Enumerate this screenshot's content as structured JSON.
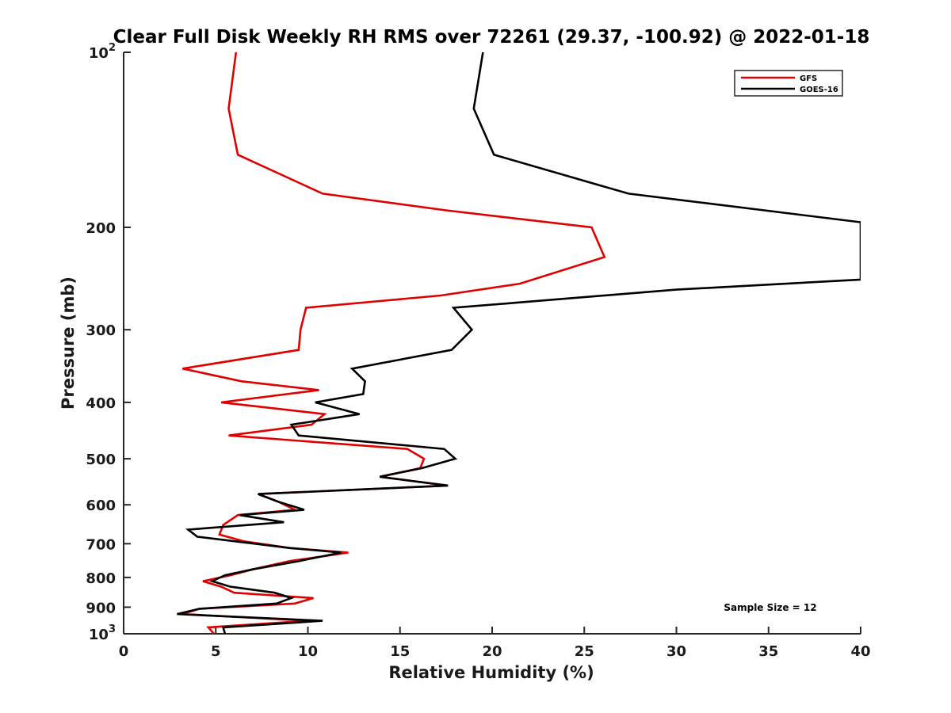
{
  "chart_data": {
    "type": "line",
    "title": "Clear Full Disk Weekly RH RMS over 72261 (29.37, -100.92) @ 2022-01-18",
    "xlabel": "Relative Humidity (%)",
    "ylabel": "Pressure (mb)",
    "xlim": [
      0,
      40
    ],
    "ylim": [
      100,
      1000
    ],
    "y_scale": "log",
    "y_reversed": true,
    "grid": false,
    "legend_position": "top-right",
    "x_ticks": [
      0,
      5,
      10,
      15,
      20,
      25,
      30,
      35,
      40
    ],
    "y_ticks": [
      {
        "value": 100,
        "base": "10",
        "exp": "2",
        "label": ""
      },
      {
        "value": 200,
        "label": "200"
      },
      {
        "value": 300,
        "label": "300"
      },
      {
        "value": 400,
        "label": "400"
      },
      {
        "value": 500,
        "label": "500"
      },
      {
        "value": 600,
        "label": "600"
      },
      {
        "value": 700,
        "label": "700"
      },
      {
        "value": 800,
        "label": "800"
      },
      {
        "value": 900,
        "label": "900"
      },
      {
        "value": 1000,
        "base": "10",
        "exp": "3",
        "label": ""
      }
    ],
    "series": [
      {
        "name": "GFS",
        "color": "#e00000",
        "points": [
          [
            6.1,
            100
          ],
          [
            5.7,
            125
          ],
          [
            6.2,
            150
          ],
          [
            10.8,
            175
          ],
          [
            17.5,
            187
          ],
          [
            25.4,
            200
          ],
          [
            26.1,
            225
          ],
          [
            21.5,
            250
          ],
          [
            17.2,
            262
          ],
          [
            9.9,
            275
          ],
          [
            9.6,
            300
          ],
          [
            9.5,
            325
          ],
          [
            3.2,
            350
          ],
          [
            6.4,
            368
          ],
          [
            10.6,
            381
          ],
          [
            5.3,
            400
          ],
          [
            10.9,
            419
          ],
          [
            10.2,
            437
          ],
          [
            5.7,
            456
          ],
          [
            15.4,
            481
          ],
          [
            16.3,
            500
          ],
          [
            16.1,
            519
          ],
          [
            13.9,
            537
          ],
          [
            17.6,
            556
          ],
          [
            7.3,
            575
          ],
          [
            8.4,
            593
          ],
          [
            9.3,
            612
          ],
          [
            6.2,
            625
          ],
          [
            5.4,
            650
          ],
          [
            5.2,
            675
          ],
          [
            6.5,
            693
          ],
          [
            9.0,
            712
          ],
          [
            12.2,
            725
          ],
          [
            9.0,
            750
          ],
          [
            7.0,
            775
          ],
          [
            5.8,
            793
          ],
          [
            4.3,
            812
          ],
          [
            5.3,
            830
          ],
          [
            6.0,
            850
          ],
          [
            10.3,
            868
          ],
          [
            9.3,
            887
          ],
          [
            4.1,
            906
          ],
          [
            3.2,
            925
          ],
          [
            10.0,
            950
          ],
          [
            4.6,
            975
          ],
          [
            4.9,
            1000
          ]
        ]
      },
      {
        "name": "GOES-16",
        "color": "#000000",
        "points": [
          [
            19.5,
            100
          ],
          [
            19.0,
            125
          ],
          [
            20.1,
            150
          ],
          [
            27.4,
            175
          ],
          [
            40.0,
            196
          ],
          [
            40.0,
            246
          ],
          [
            30.0,
            256
          ],
          [
            17.9,
            275
          ],
          [
            18.9,
            300
          ],
          [
            17.8,
            325
          ],
          [
            12.4,
            350
          ],
          [
            13.1,
            368
          ],
          [
            13.0,
            387
          ],
          [
            10.4,
            400
          ],
          [
            12.8,
            419
          ],
          [
            9.1,
            437
          ],
          [
            9.5,
            456
          ],
          [
            17.4,
            481
          ],
          [
            18.0,
            500
          ],
          [
            16.2,
            519
          ],
          [
            13.9,
            537
          ],
          [
            17.6,
            556
          ],
          [
            7.3,
            575
          ],
          [
            8.4,
            593
          ],
          [
            9.8,
            612
          ],
          [
            6.3,
            625
          ],
          [
            8.7,
            643
          ],
          [
            3.5,
            662
          ],
          [
            4.0,
            681
          ],
          [
            9.0,
            712
          ],
          [
            11.8,
            725
          ],
          [
            9.5,
            750
          ],
          [
            7.0,
            775
          ],
          [
            5.5,
            793
          ],
          [
            4.8,
            812
          ],
          [
            5.8,
            830
          ],
          [
            8.2,
            850
          ],
          [
            9.1,
            868
          ],
          [
            8.3,
            887
          ],
          [
            4.1,
            906
          ],
          [
            2.9,
            925
          ],
          [
            10.8,
            950
          ],
          [
            5.4,
            975
          ],
          [
            5.5,
            1000
          ]
        ]
      }
    ],
    "annotations": [
      {
        "text": "Sample Size = 12"
      }
    ]
  }
}
